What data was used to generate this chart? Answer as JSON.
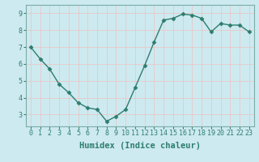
{
  "x": [
    0,
    1,
    2,
    3,
    4,
    5,
    6,
    7,
    8,
    9,
    10,
    11,
    12,
    13,
    14,
    15,
    16,
    17,
    18,
    19,
    20,
    21,
    22,
    23
  ],
  "y": [
    7.0,
    6.3,
    5.7,
    4.8,
    4.3,
    3.7,
    3.4,
    3.3,
    2.6,
    2.9,
    3.3,
    4.6,
    5.9,
    7.3,
    8.6,
    8.7,
    8.95,
    8.9,
    8.7,
    7.9,
    8.4,
    8.3,
    8.3,
    7.9
  ],
  "line_color": "#2e7d6e",
  "marker": "D",
  "marker_size": 2.5,
  "xlabel": "Humidex (Indice chaleur)",
  "bg_color": "#cdeaf0",
  "grid_color_major": "#e8c8c8",
  "grid_color_minor": "#cdeaf0",
  "xlim": [
    -0.5,
    23.5
  ],
  "ylim": [
    2.3,
    9.5
  ],
  "yticks": [
    3,
    4,
    5,
    6,
    7,
    8,
    9
  ],
  "xticks": [
    0,
    1,
    2,
    3,
    4,
    5,
    6,
    7,
    8,
    9,
    10,
    11,
    12,
    13,
    14,
    15,
    16,
    17,
    18,
    19,
    20,
    21,
    22,
    23
  ],
  "tick_label_fontsize": 6,
  "xlabel_fontsize": 7.5,
  "tick_color": "#2e7d6e",
  "label_color": "#2e7d6e",
  "spine_color": "#7aada8"
}
